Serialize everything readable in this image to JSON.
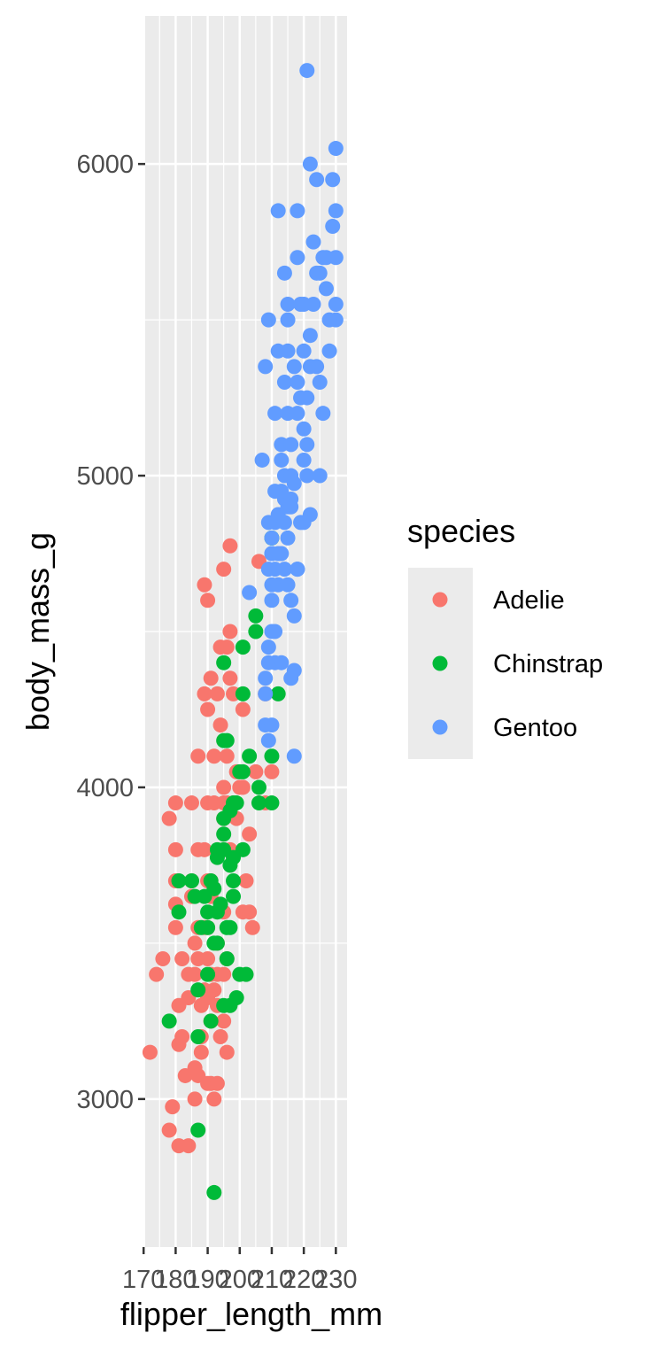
{
  "chart_data": {
    "type": "scatter",
    "title": "",
    "xlabel": "flipper_length_mm",
    "ylabel": "body_mass_g",
    "xlim": [
      170.5,
      233.5
    ],
    "ylim": [
      2525,
      6475
    ],
    "x_ticks": [
      170,
      180,
      190,
      200,
      210,
      220,
      230
    ],
    "x_tick_labels": [
      "170",
      "180",
      "190",
      "200",
      "210",
      "220",
      "230"
    ],
    "y_ticks": [
      3000,
      4000,
      5000,
      6000
    ],
    "y_tick_labels": [
      "3000",
      "4000",
      "5000",
      "6000"
    ],
    "grid": true,
    "legend": {
      "title": "species",
      "position": "right"
    },
    "series": [
      {
        "name": "Adelie",
        "color": "#F8766D",
        "points": [
          [
            172,
            3150
          ],
          [
            174,
            3400
          ],
          [
            176,
            3450
          ],
          [
            178,
            3900
          ],
          [
            178,
            2900
          ],
          [
            179,
            2975
          ],
          [
            180,
            3950
          ],
          [
            180,
            3800
          ],
          [
            180,
            3700
          ],
          [
            180,
            3550
          ],
          [
            180,
            3625
          ],
          [
            181,
            3300
          ],
          [
            181,
            3175
          ],
          [
            181,
            2850
          ],
          [
            182,
            3450
          ],
          [
            182,
            3200
          ],
          [
            183,
            3075
          ],
          [
            184,
            3400
          ],
          [
            184,
            2850
          ],
          [
            184,
            3325
          ],
          [
            185,
            3700
          ],
          [
            185,
            3950
          ],
          [
            185,
            3650
          ],
          [
            186,
            3000
          ],
          [
            186,
            3400
          ],
          [
            186,
            3100
          ],
          [
            186,
            3500
          ],
          [
            187,
            3450
          ],
          [
            187,
            3550
          ],
          [
            187,
            3075
          ],
          [
            187,
            3800
          ],
          [
            187,
            4100
          ],
          [
            188,
            3150
          ],
          [
            188,
            3300
          ],
          [
            188,
            3200
          ],
          [
            189,
            3550
          ],
          [
            189,
            3800
          ],
          [
            189,
            3350
          ],
          [
            189,
            4300
          ],
          [
            190,
            3950
          ],
          [
            190,
            3450
          ],
          [
            190,
            3700
          ],
          [
            190,
            3050
          ],
          [
            190,
            3325
          ],
          [
            190,
            3550
          ],
          [
            190,
            4250
          ],
          [
            191,
            3050
          ],
          [
            191,
            3700
          ],
          [
            191,
            3650
          ],
          [
            191,
            3400
          ],
          [
            191,
            3250
          ],
          [
            192,
            3950
          ],
          [
            192,
            3000
          ],
          [
            192,
            4100
          ],
          [
            193,
            3050
          ],
          [
            193,
            3300
          ],
          [
            193,
            3400
          ],
          [
            193,
            3500
          ],
          [
            194,
            4200
          ],
          [
            194,
            3200
          ],
          [
            195,
            3250
          ],
          [
            195,
            3400
          ],
          [
            195,
            3900
          ],
          [
            195,
            3800
          ],
          [
            195,
            3950
          ],
          [
            195,
            3600
          ],
          [
            195,
            4000
          ],
          [
            196,
            3950
          ],
          [
            196,
            3150
          ],
          [
            196,
            3450
          ],
          [
            196,
            4100
          ],
          [
            197,
            3800
          ],
          [
            197,
            4350
          ],
          [
            197,
            4500
          ],
          [
            198,
            3950
          ],
          [
            198,
            4300
          ],
          [
            199,
            3900
          ],
          [
            199,
            4050
          ],
          [
            200,
            4000
          ],
          [
            201,
            3600
          ],
          [
            201,
            4000
          ],
          [
            202,
            3700
          ],
          [
            203,
            3600
          ],
          [
            205,
            4050
          ],
          [
            210,
            4050
          ],
          [
            208,
            4300
          ],
          [
            190,
            4600
          ],
          [
            189,
            4650
          ],
          [
            195,
            4700
          ],
          [
            196,
            4450
          ],
          [
            197,
            4775
          ],
          [
            201,
            4250
          ],
          [
            203,
            3850
          ],
          [
            204,
            3550
          ],
          [
            206,
            4725
          ],
          [
            208,
            3950
          ],
          [
            191,
            4350
          ],
          [
            193,
            4300
          ],
          [
            194,
            4450
          ],
          [
            192,
            3350
          ]
        ]
      },
      {
        "name": "Chinstrap",
        "color": "#00BA38",
        "points": [
          [
            178,
            3250
          ],
          [
            181,
            3700
          ],
          [
            181,
            3600
          ],
          [
            185,
            3700
          ],
          [
            186,
            3650
          ],
          [
            187,
            3200
          ],
          [
            187,
            2900
          ],
          [
            187,
            3350
          ],
          [
            188,
            3550
          ],
          [
            189,
            3650
          ],
          [
            190,
            3600
          ],
          [
            190,
            3400
          ],
          [
            190,
            3550
          ],
          [
            191,
            3250
          ],
          [
            191,
            3700
          ],
          [
            192,
            3675
          ],
          [
            192,
            2700
          ],
          [
            193,
            3500
          ],
          [
            193,
            3800
          ],
          [
            193,
            3775
          ],
          [
            195,
            3850
          ],
          [
            195,
            3800
          ],
          [
            195,
            3300
          ],
          [
            195,
            4150
          ],
          [
            195,
            4400
          ],
          [
            195,
            3900
          ],
          [
            196,
            3550
          ],
          [
            196,
            3450
          ],
          [
            196,
            4150
          ],
          [
            197,
            3300
          ],
          [
            197,
            3750
          ],
          [
            197,
            3925
          ],
          [
            198,
            3650
          ],
          [
            198,
            3775
          ],
          [
            198,
            3700
          ],
          [
            199,
            3325
          ],
          [
            199,
            3950
          ],
          [
            200,
            3400
          ],
          [
            200,
            4050
          ],
          [
            201,
            4450
          ],
          [
            201,
            3800
          ],
          [
            201,
            4300
          ],
          [
            202,
            3400
          ],
          [
            203,
            4100
          ],
          [
            205,
            4500
          ],
          [
            205,
            4550
          ],
          [
            206,
            4000
          ],
          [
            206,
            3950
          ],
          [
            210,
            4800
          ],
          [
            210,
            3950
          ],
          [
            210,
            4100
          ],
          [
            212,
            4300
          ],
          [
            193,
            3600
          ],
          [
            198,
            3950
          ],
          [
            201,
            4050
          ],
          [
            194,
            3625
          ],
          [
            192,
            3500
          ],
          [
            197,
            3550
          ]
        ]
      },
      {
        "name": "Gentoo",
        "color": "#619CFF",
        "points": [
          [
            203,
            4625
          ],
          [
            207,
            5050
          ],
          [
            208,
            4350
          ],
          [
            208,
            4300
          ],
          [
            208,
            5350
          ],
          [
            208,
            4200
          ],
          [
            209,
            5500
          ],
          [
            209,
            4400
          ],
          [
            209,
            4850
          ],
          [
            209,
            4700
          ],
          [
            209,
            4150
          ],
          [
            210,
            4200
          ],
          [
            210,
            4750
          ],
          [
            210,
            4650
          ],
          [
            210,
            4500
          ],
          [
            210,
            4600
          ],
          [
            210,
            4800
          ],
          [
            211,
            4400
          ],
          [
            211,
            4500
          ],
          [
            211,
            4700
          ],
          [
            211,
            4850
          ],
          [
            211,
            5200
          ],
          [
            212,
            4875
          ],
          [
            212,
            4650
          ],
          [
            212,
            4750
          ],
          [
            212,
            5400
          ],
          [
            212,
            5850
          ],
          [
            213,
            4400
          ],
          [
            213,
            4750
          ],
          [
            213,
            4950
          ],
          [
            213,
            5100
          ],
          [
            214,
            4850
          ],
          [
            214,
            5000
          ],
          [
            214,
            4925
          ],
          [
            214,
            5650
          ],
          [
            214,
            5300
          ],
          [
            215,
            4900
          ],
          [
            215,
            5400
          ],
          [
            215,
            5500
          ],
          [
            215,
            5200
          ],
          [
            215,
            4650
          ],
          [
            215,
            5550
          ],
          [
            216,
            4600
          ],
          [
            216,
            5100
          ],
          [
            216,
            4925
          ],
          [
            216,
            4350
          ],
          [
            216,
            5000
          ],
          [
            217,
            4975
          ],
          [
            217,
            5350
          ],
          [
            217,
            4100
          ],
          [
            217,
            4375
          ],
          [
            218,
            5200
          ],
          [
            218,
            5700
          ],
          [
            218,
            5300
          ],
          [
            218,
            5850
          ],
          [
            219,
            4850
          ],
          [
            219,
            5250
          ],
          [
            220,
            5400
          ],
          [
            220,
            5550
          ],
          [
            221,
            5000
          ],
          [
            221,
            5100
          ],
          [
            221,
            6300
          ],
          [
            222,
            5350
          ],
          [
            222,
            6000
          ],
          [
            223,
            5550
          ],
          [
            224,
            5350
          ],
          [
            225,
            5650
          ],
          [
            228,
            5400
          ],
          [
            230,
            5550
          ],
          [
            230,
            6050
          ],
          [
            230,
            5850
          ],
          [
            230,
            5700
          ],
          [
            230,
            5500
          ],
          [
            226,
            5200
          ],
          [
            227,
            5600
          ],
          [
            229,
            5800
          ],
          [
            229,
            5950
          ],
          [
            228,
            5500
          ],
          [
            225,
            5300
          ],
          [
            224,
            5950
          ],
          [
            223,
            5750
          ],
          [
            222,
            5450
          ],
          [
            221,
            5250
          ],
          [
            220,
            5150
          ],
          [
            219,
            5550
          ],
          [
            218,
            4700
          ],
          [
            217,
            4550
          ],
          [
            216,
            4900
          ],
          [
            215,
            4800
          ],
          [
            214,
            4700
          ],
          [
            213,
            5050
          ],
          [
            211,
            4950
          ],
          [
            210,
            4750
          ],
          [
            209,
            4450
          ],
          [
            220,
            5050
          ],
          [
            220,
            4850
          ],
          [
            222,
            4875
          ],
          [
            226,
            5700
          ],
          [
            224,
            5650
          ],
          [
            225,
            5000
          ],
          [
            227,
            5700
          ],
          [
            218,
            4700
          ]
        ]
      }
    ]
  }
}
